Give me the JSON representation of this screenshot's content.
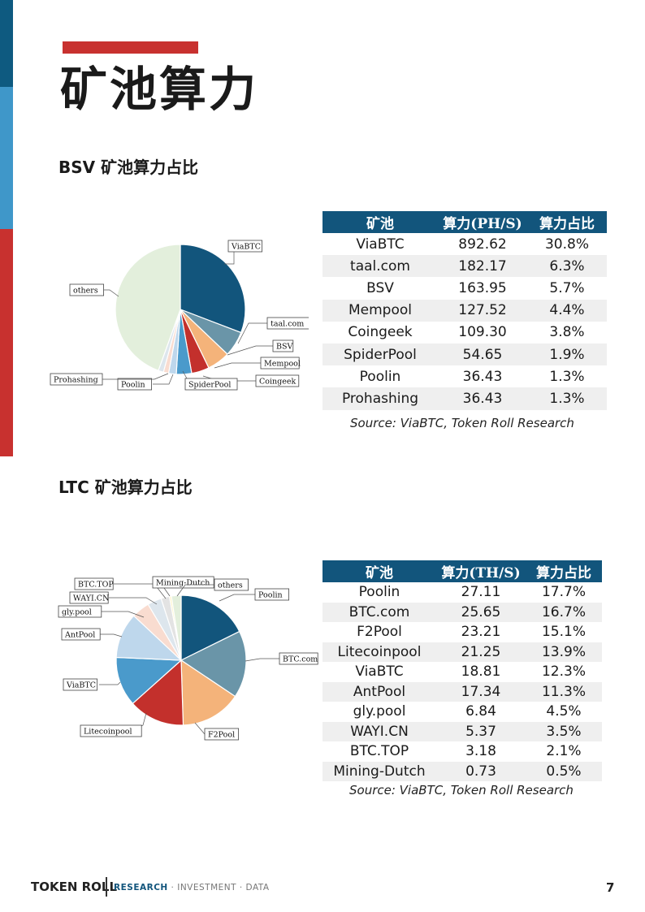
{
  "page": {
    "title": "矿池算力",
    "number": "7"
  },
  "footer": {
    "brand": "TOKEN ROLL",
    "tagline_accent": "RESEARCH",
    "tagline_rest": " · INVESTMENT · DATA"
  },
  "colors": {
    "accent_red": "#c8312f",
    "navy": "#12557c",
    "side_dark_blue": "#0e5a80",
    "side_light_blue": "#3f97c9"
  },
  "bsv": {
    "section_title": "BSV 矿池算力占比",
    "headers": [
      "矿池",
      "算力(PH/S)",
      "算力占比"
    ],
    "rows": [
      [
        "ViaBTC",
        "892.62",
        "30.8%"
      ],
      [
        "taal.com",
        "182.17",
        "6.3%"
      ],
      [
        "BSV",
        "163.95",
        "5.7%"
      ],
      [
        "Mempool",
        "127.52",
        "4.4%"
      ],
      [
        "Coingeek",
        "109.30",
        "3.8%"
      ],
      [
        "SpiderPool",
        "54.65",
        "1.9%"
      ],
      [
        "Poolin",
        "36.43",
        "1.3%"
      ],
      [
        "Prohashing",
        "36.43",
        "1.3%"
      ]
    ],
    "source": "Source: ViaBTC, Token Roll Research"
  },
  "ltc": {
    "section_title": "LTC 矿池算力占比",
    "headers": [
      "矿池",
      "算力(TH/S)",
      "算力占比"
    ],
    "rows": [
      [
        "Poolin",
        "27.11",
        "17.7%"
      ],
      [
        "BTC.com",
        "25.65",
        "16.7%"
      ],
      [
        "F2Pool",
        "23.21",
        "15.1%"
      ],
      [
        "Litecoinpool",
        "21.25",
        "13.9%"
      ],
      [
        "ViaBTC",
        "18.81",
        "12.3%"
      ],
      [
        "AntPool",
        "17.34",
        "11.3%"
      ],
      [
        "gly.pool",
        "6.84",
        "4.5%"
      ],
      [
        "WAYI.CN",
        "5.37",
        "3.5%"
      ],
      [
        "BTC.TOP",
        "3.18",
        "2.1%"
      ],
      [
        "Mining-Dutch",
        "0.73",
        "0.5%"
      ]
    ],
    "source": "Source: ViaBTC, Token Roll Research"
  },
  "chart_data": [
    {
      "type": "pie",
      "categories": [
        "ViaBTC",
        "taal.com",
        "BSV",
        "Mempool",
        "Coingeek",
        "SpiderPool",
        "Poolin",
        "Prohashing",
        "others"
      ],
      "values": [
        30.8,
        6.3,
        5.7,
        4.4,
        3.8,
        1.9,
        1.3,
        1.3,
        44.5
      ],
      "colors": [
        "#12557c",
        "#6a95a8",
        "#f4b37a",
        "#c3302c",
        "#4a9acb",
        "#bed7ec",
        "#f9dcd0",
        "#dde6ed",
        "#e3efdc"
      ]
    },
    {
      "type": "pie",
      "categories": [
        "Poolin",
        "BTC.com",
        "F2Pool",
        "Litecoinpool",
        "ViaBTC",
        "AntPool",
        "gly.pool",
        "WAYI.CN",
        "BTC.TOP",
        "Mining-Dutch",
        "others"
      ],
      "values": [
        17.7,
        16.7,
        15.1,
        13.9,
        12.3,
        11.3,
        4.5,
        3.5,
        2.1,
        0.5,
        2.4
      ],
      "colors": [
        "#12557c",
        "#6a95a8",
        "#f4b37a",
        "#c3302c",
        "#4a9acb",
        "#bed7ec",
        "#f9dcd0",
        "#dde6ed",
        "#e3e3e3",
        "#fff4c4",
        "#e3efdc"
      ]
    }
  ]
}
